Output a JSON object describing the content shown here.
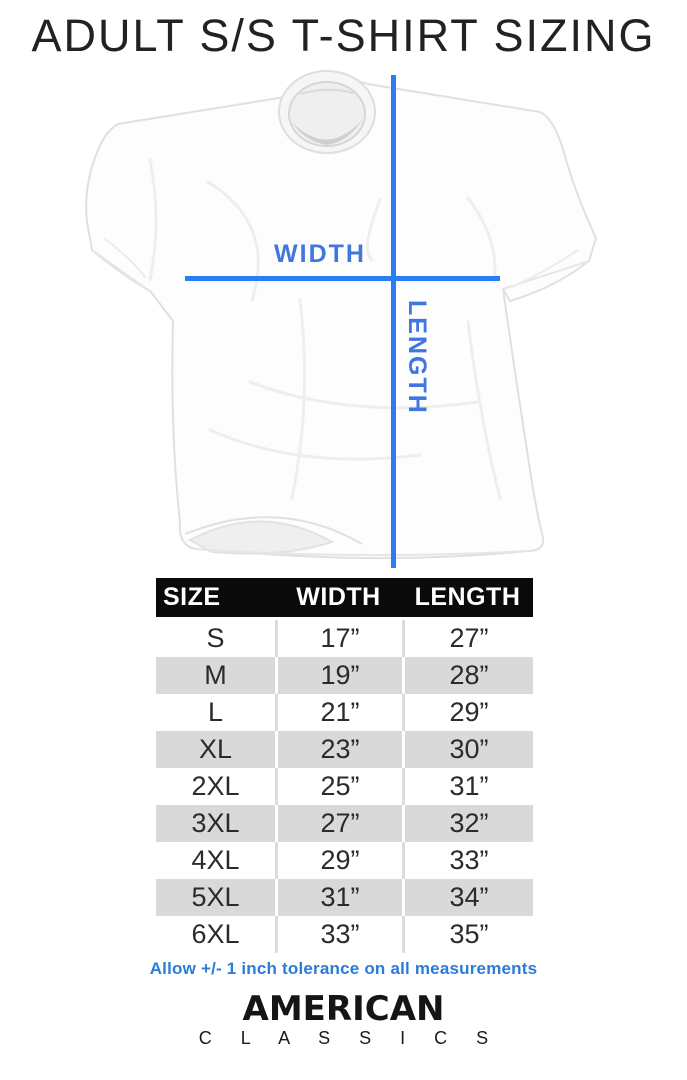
{
  "title": "ADULT S/S T-SHIRT SIZING",
  "colors": {
    "line_blue": "#2b7ef2",
    "label_blue": "#4176e0",
    "note_blue": "#2a7cdb",
    "table_header_bg": "#0a0a0a",
    "table_alt_row_bg": "#d9d9d9"
  },
  "diagram": {
    "width_label": "WIDTH",
    "length_label": "LENGTH"
  },
  "table": {
    "headers": [
      "SIZE",
      "WIDTH",
      "LENGTH"
    ],
    "rows": [
      [
        "S",
        "17”",
        "27”"
      ],
      [
        "M",
        "19”",
        "28”"
      ],
      [
        "L",
        "21”",
        "29”"
      ],
      [
        "XL",
        "23”",
        "30”"
      ],
      [
        "2XL",
        "25”",
        "31”"
      ],
      [
        "3XL",
        "27”",
        "32”"
      ],
      [
        "4XL",
        "29”",
        "33”"
      ],
      [
        "5XL",
        "31”",
        "34”"
      ],
      [
        "6XL",
        "33”",
        "35”"
      ]
    ]
  },
  "note": "Allow +/- 1 inch tolerance on all measurements",
  "brand": {
    "line1": "AMERICAN",
    "line2": "C L A S S I C S"
  },
  "chart_data": {
    "type": "table",
    "title": "ADULT S/S T-SHIRT SIZING",
    "columns": [
      "SIZE",
      "WIDTH",
      "LENGTH"
    ],
    "units": "inches",
    "rows": [
      {
        "size": "S",
        "width_in": 17,
        "length_in": 27
      },
      {
        "size": "M",
        "width_in": 19,
        "length_in": 28
      },
      {
        "size": "L",
        "width_in": 21,
        "length_in": 29
      },
      {
        "size": "XL",
        "width_in": 23,
        "length_in": 30
      },
      {
        "size": "2XL",
        "width_in": 25,
        "length_in": 31
      },
      {
        "size": "3XL",
        "width_in": 27,
        "length_in": 32
      },
      {
        "size": "4XL",
        "width_in": 29,
        "length_in": 33
      },
      {
        "size": "5XL",
        "width_in": 31,
        "length_in": 34
      },
      {
        "size": "6XL",
        "width_in": 33,
        "length_in": 35
      }
    ],
    "tolerance_note": "Allow +/- 1 inch tolerance on all measurements"
  }
}
